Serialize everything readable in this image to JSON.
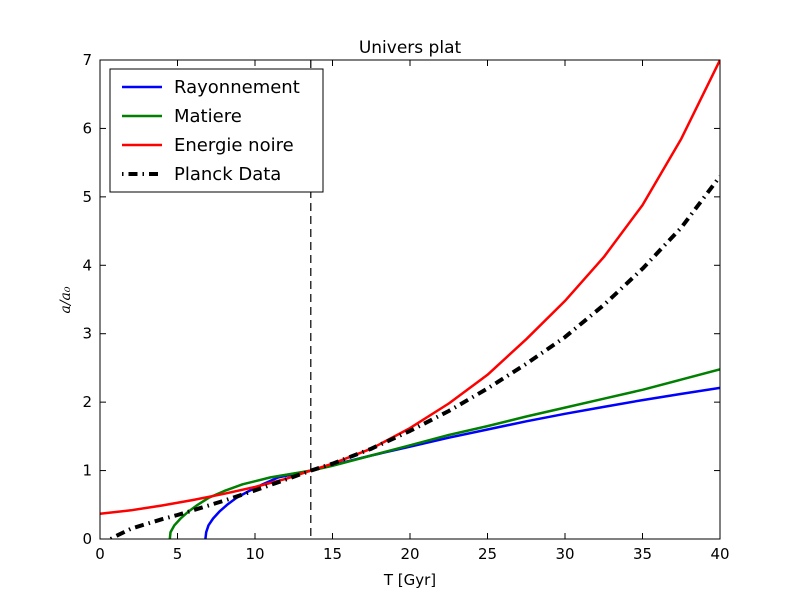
{
  "chart_data": {
    "type": "line",
    "title": "Univers plat",
    "xlabel": "T [Gyr]",
    "ylabel": "a/a₀",
    "xlim": [
      0,
      40
    ],
    "ylim": [
      0,
      7
    ],
    "x_ticks": [
      "0",
      "5",
      "10",
      "15",
      "20",
      "25",
      "30",
      "35",
      "40"
    ],
    "y_ticks": [
      "0",
      "1",
      "2",
      "3",
      "4",
      "5",
      "6",
      "7"
    ],
    "grid": false,
    "legend_position": "upper-left",
    "vline": {
      "x": 13.6,
      "style": "dashed"
    },
    "series": [
      {
        "name": "Rayonnement",
        "color": "#0000ff",
        "style": "solid",
        "points": [
          [
            6.8,
            0
          ],
          [
            6.85,
            0.1
          ],
          [
            7.0,
            0.2
          ],
          [
            7.3,
            0.3
          ],
          [
            7.7,
            0.4
          ],
          [
            8.2,
            0.5
          ],
          [
            8.8,
            0.6
          ],
          [
            9.6,
            0.7
          ],
          [
            10.5,
            0.8
          ],
          [
            11.5,
            0.9
          ],
          [
            13.6,
            1.0
          ],
          [
            15,
            1.08
          ],
          [
            17.5,
            1.22
          ],
          [
            20,
            1.35
          ],
          [
            22.5,
            1.48
          ],
          [
            25,
            1.6
          ],
          [
            27.5,
            1.72
          ],
          [
            30,
            1.83
          ],
          [
            32.5,
            1.93
          ],
          [
            35,
            2.03
          ],
          [
            37.5,
            2.12
          ],
          [
            40,
            2.21
          ]
        ]
      },
      {
        "name": "Matiere",
        "color": "#008000",
        "style": "solid",
        "points": [
          [
            4.5,
            0
          ],
          [
            4.55,
            0.1
          ],
          [
            4.8,
            0.2
          ],
          [
            5.2,
            0.3
          ],
          [
            5.7,
            0.4
          ],
          [
            6.3,
            0.5
          ],
          [
            7.0,
            0.6
          ],
          [
            8.0,
            0.7
          ],
          [
            9.2,
            0.8
          ],
          [
            11.0,
            0.9
          ],
          [
            13.6,
            1.0
          ],
          [
            15,
            1.07
          ],
          [
            17.5,
            1.22
          ],
          [
            20,
            1.37
          ],
          [
            22.5,
            1.52
          ],
          [
            25,
            1.65
          ],
          [
            27.5,
            1.79
          ],
          [
            30,
            1.92
          ],
          [
            32.5,
            2.05
          ],
          [
            35,
            2.18
          ],
          [
            37.5,
            2.33
          ],
          [
            40,
            2.48
          ]
        ]
      },
      {
        "name": "Energie noire",
        "color": "#ff0000",
        "style": "solid",
        "points": [
          [
            0,
            0.37
          ],
          [
            2,
            0.42
          ],
          [
            4,
            0.49
          ],
          [
            6,
            0.57
          ],
          [
            8,
            0.66
          ],
          [
            10,
            0.76
          ],
          [
            12,
            0.88
          ],
          [
            13.6,
            1.0
          ],
          [
            15,
            1.1
          ],
          [
            17.5,
            1.32
          ],
          [
            20,
            1.62
          ],
          [
            22.5,
            1.98
          ],
          [
            25,
            2.4
          ],
          [
            27.5,
            2.92
          ],
          [
            30,
            3.48
          ],
          [
            32.5,
            4.12
          ],
          [
            35,
            4.88
          ],
          [
            37.5,
            5.85
          ],
          [
            40,
            7.0
          ]
        ]
      },
      {
        "name": "Planck Data",
        "color": "#000000",
        "style": "dashdot",
        "points": [
          [
            0.7,
            0
          ],
          [
            1,
            0.04
          ],
          [
            2,
            0.15
          ],
          [
            3,
            0.22
          ],
          [
            4,
            0.29
          ],
          [
            5,
            0.35
          ],
          [
            6,
            0.42
          ],
          [
            8,
            0.56
          ],
          [
            10,
            0.71
          ],
          [
            12,
            0.87
          ],
          [
            13.6,
            1.0
          ],
          [
            15,
            1.1
          ],
          [
            17.5,
            1.32
          ],
          [
            20,
            1.58
          ],
          [
            22.5,
            1.87
          ],
          [
            25,
            2.2
          ],
          [
            27.5,
            2.56
          ],
          [
            30,
            2.95
          ],
          [
            32.5,
            3.42
          ],
          [
            35,
            3.95
          ],
          [
            37.5,
            4.55
          ],
          [
            40,
            5.3
          ]
        ]
      }
    ]
  }
}
